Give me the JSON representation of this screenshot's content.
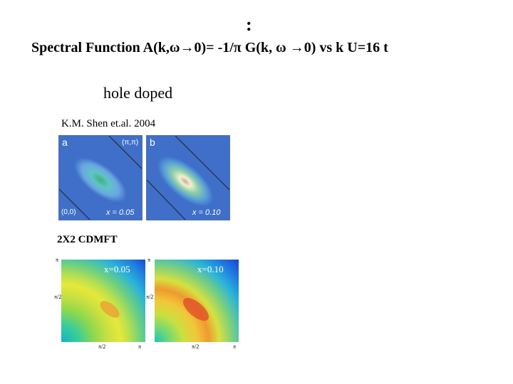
{
  "header": {
    "colon": ":",
    "title": "Spectral Function A(k,ω→0)= -1/π G(k, ω →0) vs k   U=16 t",
    "hole_doped": "hole doped"
  },
  "experiment": {
    "citation": "K.M. Shen et.al. 2004",
    "panels": [
      {
        "letter": "a",
        "corner": "(π,π)",
        "origin": "(0,0)",
        "doping": "x = 0.05"
      },
      {
        "letter": "b",
        "doping": "x = 0.10"
      }
    ]
  },
  "theory": {
    "label": "2X2 CDMFT",
    "panels": [
      {
        "doping": "x=0.05"
      },
      {
        "doping": "x=0.10"
      }
    ],
    "y_ticks": [
      "π",
      "π/2"
    ],
    "x_ticks": [
      "π/2",
      "π"
    ]
  }
}
